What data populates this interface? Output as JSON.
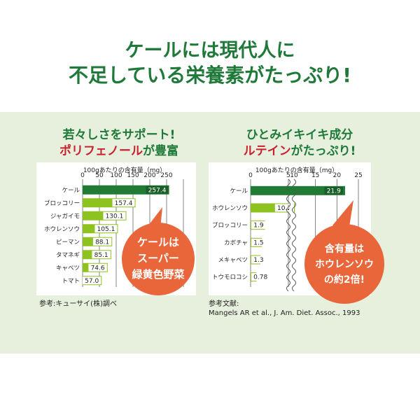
{
  "headline": {
    "line1": "ケールには現代人に",
    "line2": "不足している栄養素がたっぷり!"
  },
  "left_panel": {
    "title1": "若々しさをサポート!",
    "title2_red": "ポリフェノール",
    "title2_green": "が豊富",
    "unit_label": "100gあたりの含有量（mg）",
    "bubble": [
      "ケールは",
      "スーパー",
      "緑黄色野菜"
    ],
    "reference": "参考:キューサイ(株)調べ"
  },
  "right_panel": {
    "title1": "ひとみイキイキ成分",
    "title2_red": "ルテイン",
    "title2_green": "がたっぷり!",
    "unit_label": "100gあたりの含有量（mg）",
    "bubble": [
      "含有量は",
      "ホウレンソウ",
      "の約2倍!"
    ],
    "reference_label": "参考文献:",
    "reference": "Mangels AR et al., J. Am. Diet. Assoc., 1993"
  },
  "colors": {
    "headline_green": "#1f7a3a",
    "bar_dark": "#217a35",
    "bar_light": "#8dc21f",
    "bubble_orange": "#e8663a",
    "red": "#c8222e",
    "band": "#e7efdd"
  },
  "chart_data": [
    {
      "type": "bar",
      "orientation": "horizontal",
      "title": "",
      "xlabel": "100gあたりの含有量（mg）",
      "categories": [
        "ケール",
        "ブロッコリー",
        "ジャガイモ",
        "ホウレンソウ",
        "ピーマン",
        "タマネギ",
        "キャベツ",
        "トマト"
      ],
      "values": [
        257.4,
        157.4,
        130.1,
        105.1,
        88.1,
        85.1,
        74.6,
        57.0
      ],
      "value_labels": [
        "257.4",
        "157.4",
        "130.1",
        "105.1",
        "88.1",
        "85.1",
        "74.6",
        "57.0"
      ],
      "xlim": [
        0,
        300
      ],
      "xticks": [
        "0",
        "50",
        "100",
        "150",
        "200",
        "250"
      ],
      "grid": true
    },
    {
      "type": "bar",
      "orientation": "horizontal",
      "title": "",
      "xlabel": "100gあたりの含有量（mg）",
      "categories": [
        "ケール",
        "ホウレンソウ",
        "ブロッコリー",
        "カボチャ",
        "メキャベツ",
        "トウモロコシ"
      ],
      "values": [
        21.9,
        10.2,
        1.9,
        1.5,
        1.3,
        0.78
      ],
      "value_labels": [
        "21.9",
        "10.2",
        "1.9",
        "1.5",
        "1.3",
        "0.78"
      ],
      "xlim": [
        0,
        25
      ],
      "xticks": [
        "0",
        "5",
        "10",
        "15",
        "20",
        "25"
      ],
      "axis_break": [
        5,
        10
      ],
      "grid": true
    }
  ]
}
